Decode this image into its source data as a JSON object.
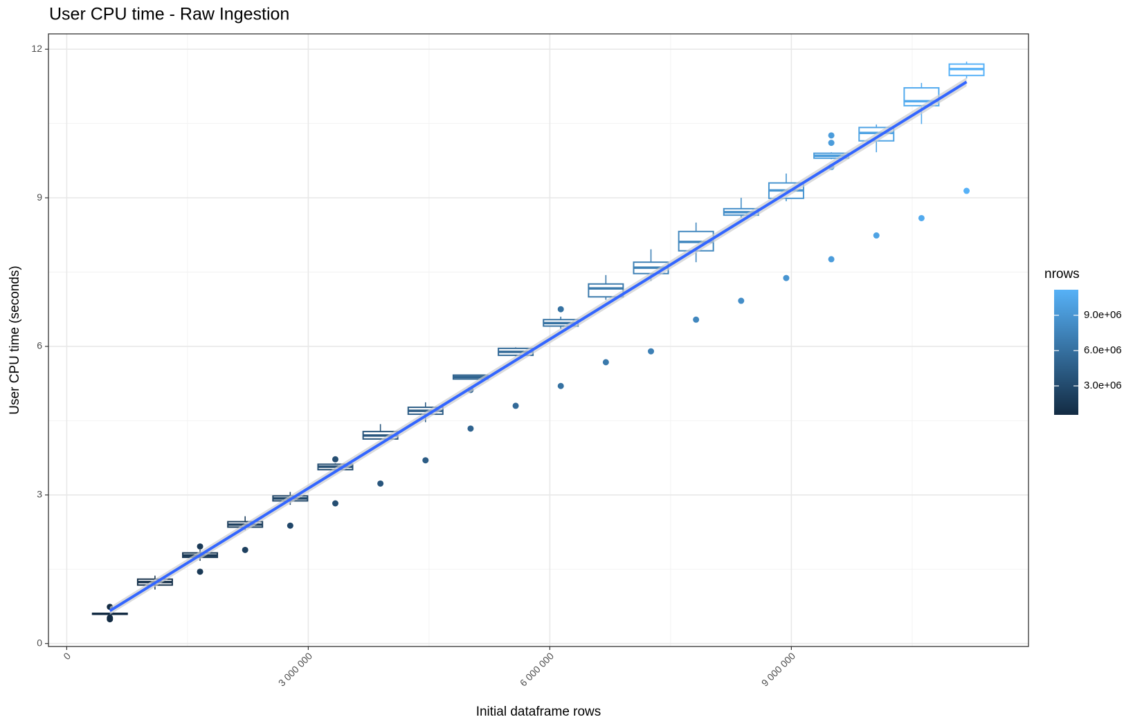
{
  "chart_data": {
    "type": "boxplot",
    "title": "User CPU time - Raw Ingestion",
    "x_label": "Initial dataframe rows",
    "y_label": "User CPU time (seconds)",
    "xlim": [
      -227000,
      11945000
    ],
    "ylim": [
      -0.06,
      12.31
    ],
    "xticks": [
      0,
      {
        "value": 3000000,
        "label": "3 000 000"
      },
      {
        "value": 6000000,
        "label": "6 000 000"
      },
      {
        "value": 9000000,
        "label": "9 000 000"
      }
    ],
    "yticks": [
      0,
      3,
      6,
      9,
      12
    ],
    "xminor": [
      1500000,
      4500000,
      7500000,
      10500000
    ],
    "yminor": [
      1.5,
      4.5,
      7.5,
      10.5
    ],
    "grid": true,
    "color_name": "nrows",
    "color_low": "#132B43",
    "color_high": "#56B1F7",
    "color_lim": [
      536000,
      11176000
    ],
    "color_ticks": [
      {
        "value": 3000000,
        "label": "3.0e+06"
      },
      {
        "value": 6000000,
        "label": "6.0e+06"
      },
      {
        "value": 9000000,
        "label": "9.0e+06"
      }
    ],
    "trend": {
      "color": "#3366ff",
      "band_color": "#cccccc",
      "x": [
        536000,
        11176000
      ],
      "y": [
        0.66,
        11.34
      ],
      "lower": [
        0.58,
        11.25
      ],
      "upper": [
        0.74,
        11.43
      ]
    },
    "boxes": [
      {
        "x": 536000,
        "low": 0.57,
        "q1": 0.59,
        "median": 0.6,
        "q3": 0.61,
        "high": 0.62,
        "outliers": [
          0.74,
          0.52,
          0.49
        ]
      },
      {
        "x": 1096000,
        "low": 1.09,
        "q1": 1.18,
        "median": 1.24,
        "q3": 1.3,
        "high": 1.37,
        "outliers": []
      },
      {
        "x": 1656000,
        "low": 1.67,
        "q1": 1.74,
        "median": 1.78,
        "q3": 1.83,
        "high": 1.89,
        "outliers": [
          1.96,
          1.45
        ]
      },
      {
        "x": 2216000,
        "low": 2.29,
        "q1": 2.35,
        "median": 2.4,
        "q3": 2.46,
        "high": 2.57,
        "outliers": [
          1.89
        ]
      },
      {
        "x": 2776000,
        "low": 2.8,
        "q1": 2.88,
        "median": 2.93,
        "q3": 2.98,
        "high": 3.06,
        "outliers": [
          2.38
        ]
      },
      {
        "x": 3336000,
        "low": 3.49,
        "q1": 3.51,
        "median": 3.57,
        "q3": 3.62,
        "high": 3.64,
        "outliers": [
          3.72,
          2.83
        ]
      },
      {
        "x": 3896000,
        "low": 4.13,
        "q1": 4.13,
        "median": 4.2,
        "q3": 4.28,
        "high": 4.43,
        "outliers": [
          3.23
        ]
      },
      {
        "x": 4456000,
        "low": 4.47,
        "q1": 4.63,
        "median": 4.7,
        "q3": 4.77,
        "high": 4.87,
        "outliers": [
          3.7
        ]
      },
      {
        "x": 5016000,
        "low": 5.33,
        "q1": 5.34,
        "median": 5.38,
        "q3": 5.42,
        "high": 5.43,
        "outliers": [
          5.12,
          4.34
        ]
      },
      {
        "x": 5576000,
        "low": 5.8,
        "q1": 5.82,
        "median": 5.89,
        "q3": 5.96,
        "high": 5.98,
        "outliers": [
          4.8
        ]
      },
      {
        "x": 6136000,
        "low": 6.35,
        "q1": 6.41,
        "median": 6.47,
        "q3": 6.54,
        "high": 6.6,
        "outliers": [
          6.75,
          5.2
        ]
      },
      {
        "x": 6696000,
        "low": 6.94,
        "q1": 7.0,
        "median": 7.17,
        "q3": 7.26,
        "high": 7.44,
        "outliers": [
          5.68
        ]
      },
      {
        "x": 7256000,
        "low": 7.32,
        "q1": 7.47,
        "median": 7.59,
        "q3": 7.7,
        "high": 7.96,
        "outliers": [
          5.9
        ]
      },
      {
        "x": 7816000,
        "low": 7.7,
        "q1": 7.93,
        "median": 8.11,
        "q3": 8.32,
        "high": 8.5,
        "outliers": [
          6.54
        ]
      },
      {
        "x": 8376000,
        "low": 8.59,
        "q1": 8.65,
        "median": 8.71,
        "q3": 8.78,
        "high": 9.0,
        "outliers": [
          6.92
        ]
      },
      {
        "x": 8936000,
        "low": 8.93,
        "q1": 8.99,
        "median": 9.15,
        "q3": 9.3,
        "high": 9.49,
        "outliers": [
          7.38
        ]
      },
      {
        "x": 9496000,
        "low": 9.78,
        "q1": 9.8,
        "median": 9.85,
        "q3": 9.9,
        "high": 9.92,
        "outliers": [
          10.26,
          10.11,
          9.62,
          7.76
        ]
      },
      {
        "x": 10056000,
        "low": 9.92,
        "q1": 10.15,
        "median": 10.31,
        "q3": 10.42,
        "high": 10.48,
        "outliers": [
          8.24
        ]
      },
      {
        "x": 10616000,
        "low": 10.49,
        "q1": 10.86,
        "median": 10.95,
        "q3": 11.22,
        "high": 11.32,
        "outliers": [
          8.59
        ]
      },
      {
        "x": 11176000,
        "low": 11.41,
        "q1": 11.47,
        "median": 11.6,
        "q3": 11.7,
        "high": 11.75,
        "outliers": [
          9.14
        ]
      }
    ]
  }
}
